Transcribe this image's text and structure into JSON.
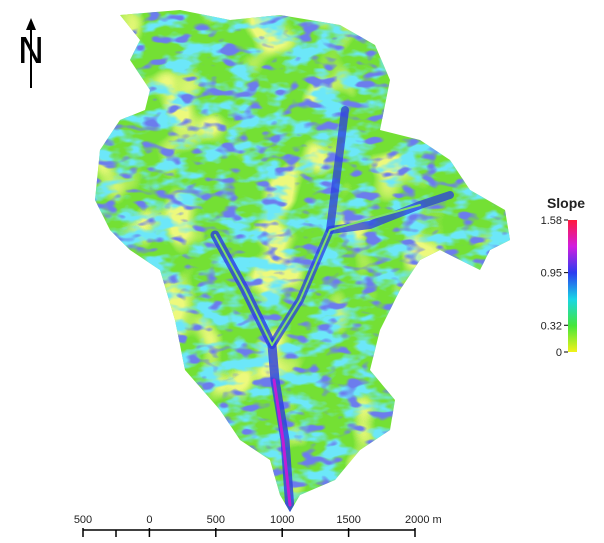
{
  "north_arrow": {
    "label": "N"
  },
  "legend": {
    "title": "Slope",
    "lim": [
      0,
      1.58
    ],
    "ticks": [
      1.58,
      0.95,
      0.32,
      0
    ]
  },
  "scale_bar": {
    "ticks": [
      {
        "value": -500,
        "label": "500"
      },
      0,
      500,
      1000,
      1500,
      {
        "value": 2000,
        "label": "2000 m"
      }
    ]
  }
}
